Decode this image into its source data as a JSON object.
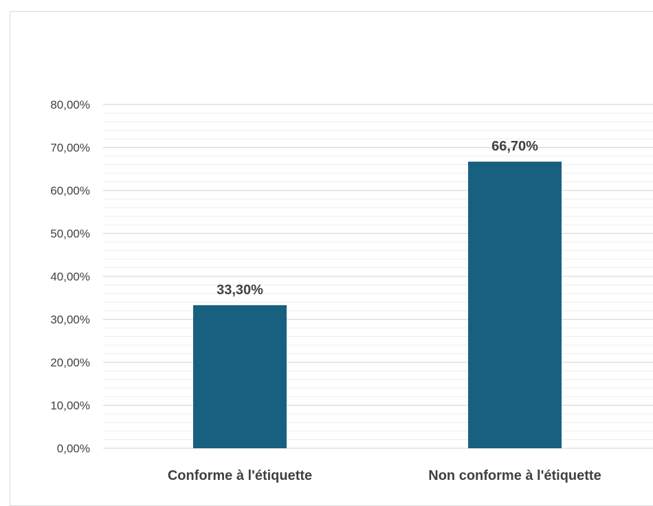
{
  "chart_data": {
    "type": "bar",
    "categories": [
      "Conforme à l'étiquette",
      "Non conforme à l'étiquette"
    ],
    "values": [
      33.3,
      66.7
    ],
    "data_labels": [
      "33,30%",
      "66,70%"
    ],
    "y_ticks": [
      "0,00%",
      "10,00%",
      "20,00%",
      "30,00%",
      "40,00%",
      "50,00%",
      "60,00%",
      "70,00%",
      "80,00%"
    ],
    "ylim": [
      0,
      80
    ],
    "y_unit": "%",
    "grid": true,
    "minor_grid": true,
    "legend": "none",
    "bar_color": "#17607f",
    "grid_color": "#d9d9d9",
    "minor_grid_color": "#ededed",
    "title": "",
    "xlabel": "",
    "ylabel": ""
  }
}
